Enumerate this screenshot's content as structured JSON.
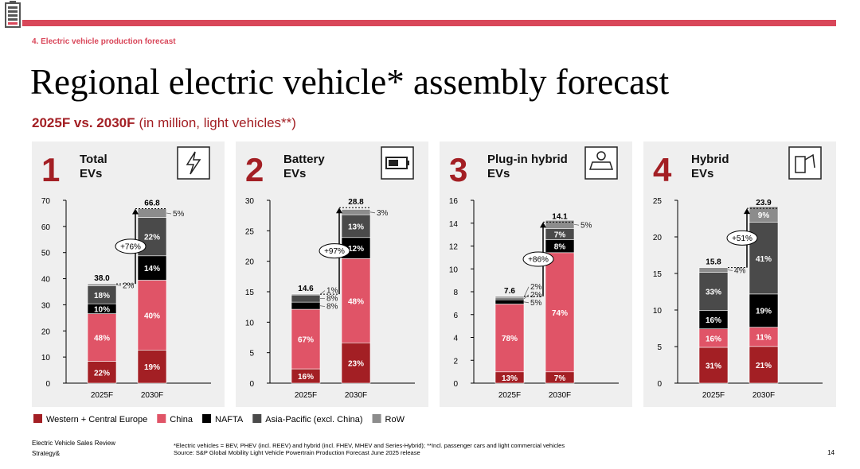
{
  "header": {
    "section": "4. Electric vehicle production forecast",
    "title": "Regional electric vehicle* assembly forecast",
    "subtitle_bold": "2025F vs. 2030F",
    "subtitle": "(in million, light vehicles**)"
  },
  "legend": [
    {
      "name": "Western + Central Europe",
      "color": "#a31f24"
    },
    {
      "name": "China",
      "color": "#e05467"
    },
    {
      "name": "NAFTA",
      "color": "#000000"
    },
    {
      "name": "Asia-Pacific (excl. China)",
      "color": "#4a4a4a"
    },
    {
      "name": "RoW",
      "color": "#8c8c8c"
    }
  ],
  "chart_data": [
    {
      "type": "bar",
      "stacked": true,
      "number": "1",
      "title_lines": [
        "Total",
        "EVs"
      ],
      "categories": [
        "2025F",
        "2030F"
      ],
      "ylim": [
        0,
        70
      ],
      "yticks": [
        0,
        10,
        20,
        30,
        40,
        50,
        60,
        70
      ],
      "series": [
        {
          "values": [
            8.36,
            12.69
          ],
          "value_labels": [
            "22%",
            "19%"
          ]
        },
        {
          "values": [
            18.24,
            26.72
          ],
          "value_labels": [
            "48%",
            "40%"
          ]
        },
        {
          "values": [
            3.8,
            9.35
          ],
          "value_labels": [
            "10%",
            "14%"
          ]
        },
        {
          "values": [
            6.84,
            14.7
          ],
          "value_labels": [
            "18%",
            "22%"
          ]
        },
        {
          "values": [
            0.76,
            3.34
          ],
          "value_labels": [
            "2%",
            "5%"
          ]
        }
      ],
      "totals": [
        38.0,
        66.8
      ],
      "total_labels": [
        "38.0",
        "66.8"
      ],
      "growth": "+76%"
    },
    {
      "type": "bar",
      "stacked": true,
      "number": "2",
      "title_lines": [
        "Battery",
        "EVs"
      ],
      "categories": [
        "2025F",
        "2030F"
      ],
      "ylim": [
        0,
        30
      ],
      "yticks": [
        0,
        5,
        10,
        15,
        20,
        25,
        30
      ],
      "series": [
        {
          "values": [
            2.34,
            6.62
          ],
          "value_labels": [
            "16%",
            "23%"
          ]
        },
        {
          "values": [
            9.78,
            13.82
          ],
          "value_labels": [
            "67%",
            "48%"
          ]
        },
        {
          "values": [
            1.17,
            3.46
          ],
          "value_labels": [
            "8%",
            "12%"
          ]
        },
        {
          "values": [
            1.17,
            3.74
          ],
          "value_labels": [
            "8%",
            "13%"
          ]
        },
        {
          "values": [
            0.15,
            0.86
          ],
          "value_labels": [
            "1%",
            "3%"
          ]
        }
      ],
      "totals": [
        14.6,
        28.8
      ],
      "total_labels": [
        "14.6",
        "28.8"
      ],
      "growth": "+97%"
    },
    {
      "type": "bar",
      "stacked": true,
      "number": "3",
      "title_lines": [
        "Plug-in hybrid",
        "EVs"
      ],
      "categories": [
        "2025F",
        "2030F"
      ],
      "ylim": [
        0,
        16
      ],
      "yticks": [
        0,
        2,
        4,
        6,
        8,
        10,
        12,
        14,
        16
      ],
      "series": [
        {
          "values": [
            0.99,
            0.99
          ],
          "value_labels": [
            "13%",
            "7%"
          ]
        },
        {
          "values": [
            5.93,
            10.43
          ],
          "value_labels": [
            "78%",
            "74%"
          ]
        },
        {
          "values": [
            0.38,
            1.13
          ],
          "value_labels": [
            "5%",
            "8%"
          ]
        },
        {
          "values": [
            0.15,
            0.99
          ],
          "value_labels": [
            "2%",
            "7%"
          ]
        },
        {
          "values": [
            0.15,
            0.71
          ],
          "value_labels": [
            "2%",
            "5%"
          ]
        }
      ],
      "totals": [
        7.6,
        14.1
      ],
      "total_labels": [
        "7.6",
        "14.1"
      ],
      "growth": "+86%"
    },
    {
      "type": "bar",
      "stacked": true,
      "number": "4",
      "title_lines": [
        "Hybrid",
        "EVs"
      ],
      "categories": [
        "2025F",
        "2030F"
      ],
      "ylim": [
        0,
        25
      ],
      "yticks": [
        0,
        5,
        10,
        15,
        20,
        25
      ],
      "series": [
        {
          "values": [
            4.9,
            5.02
          ],
          "value_labels": [
            "31%",
            "21%"
          ]
        },
        {
          "values": [
            2.53,
            2.63
          ],
          "value_labels": [
            "16%",
            "11%"
          ]
        },
        {
          "values": [
            2.53,
            4.54
          ],
          "value_labels": [
            "16%",
            "19%"
          ]
        },
        {
          "values": [
            5.21,
            9.8
          ],
          "value_labels": [
            "33%",
            "41%"
          ]
        },
        {
          "values": [
            0.63,
            2.15
          ],
          "value_labels": [
            "4%",
            "9%"
          ]
        }
      ],
      "totals": [
        15.8,
        23.9
      ],
      "total_labels": [
        "15.8",
        "23.9"
      ],
      "growth": "+51%"
    }
  ],
  "footer": {
    "source_lines": [
      "Electric Vehicle Sales Review",
      "Strategy&"
    ],
    "notes": [
      "*Electric vehicles = BEV, PHEV (incl. REEV) and hybrid (incl. FHEV, MHEV and Series-Hybrid); **Incl. passenger cars and light commercial vehicles",
      "Source: S&P Global Mobility Light Vehicle Powertrain Production Forecast June 2025 release"
    ],
    "page": "14"
  }
}
